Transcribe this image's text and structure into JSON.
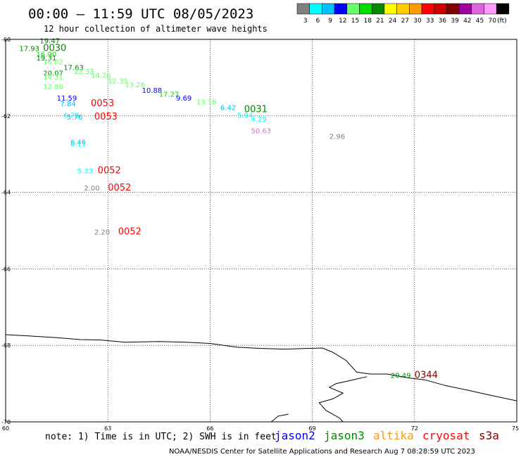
{
  "title": "00:00 – 11:59 UTC 08/05/2023",
  "subtitle": "12 hour collection of altimeter wave heights",
  "colorbar": {
    "unit": "(ft)",
    "bins": [
      {
        "label": "3",
        "color": "#7f7f7f"
      },
      {
        "label": "6",
        "color": "#00ffff"
      },
      {
        "label": "9",
        "color": "#00bfff"
      },
      {
        "label": "12",
        "color": "#0000ff"
      },
      {
        "label": "15",
        "color": "#66ff66"
      },
      {
        "label": "18",
        "color": "#00dd00"
      },
      {
        "label": "21",
        "color": "#008800"
      },
      {
        "label": "24",
        "color": "#ffff00"
      },
      {
        "label": "27",
        "color": "#ffcc00"
      },
      {
        "label": "30",
        "color": "#ff9900"
      },
      {
        "label": "33",
        "color": "#ff0000"
      },
      {
        "label": "36",
        "color": "#cc0000"
      },
      {
        "label": "39",
        "color": "#800000"
      },
      {
        "label": "42",
        "color": "#a000a0"
      },
      {
        "label": "45",
        "color": "#dd66dd"
      },
      {
        "label": "70",
        "color": "#ff99ff"
      },
      {
        "label": "",
        "color": "#000000"
      }
    ]
  },
  "axes": {
    "lat_labels": [
      "-60",
      "-62",
      "-64",
      "-66",
      "-68",
      "-70"
    ],
    "lon_labels": [
      "60",
      "63",
      "66",
      "69",
      "72",
      "75"
    ]
  },
  "observations": [
    {
      "text": "19.47",
      "color": "#008800",
      "lon": 61.0,
      "lat": -60.1
    },
    {
      "text": "17.93",
      "color": "#008800",
      "lon": 60.4,
      "lat": -60.3
    },
    {
      "text": "0030",
      "color": "#008800",
      "lon": 61.1,
      "lat": -60.3
    },
    {
      "text": "16.90",
      "color": "#00dd00",
      "lon": 60.9,
      "lat": -60.45
    },
    {
      "text": "19.31",
      "color": "#008800",
      "lon": 60.9,
      "lat": -60.55
    },
    {
      "text": "16.02",
      "color": "#66ff66",
      "lon": 61.1,
      "lat": -60.65
    },
    {
      "text": "17.63",
      "color": "#008800",
      "lon": 61.7,
      "lat": -60.8
    },
    {
      "text": "13.33",
      "color": "#66ff66",
      "lon": 62.0,
      "lat": -60.9
    },
    {
      "text": "20.07",
      "color": "#008800",
      "lon": 61.1,
      "lat": -60.95
    },
    {
      "text": "14.26",
      "color": "#66ff66",
      "lon": 62.5,
      "lat": -61.0
    },
    {
      "text": "14.31",
      "color": "#66ff66",
      "lon": 61.1,
      "lat": -61.05
    },
    {
      "text": "12.35",
      "color": "#66ff66",
      "lon": 63.0,
      "lat": -61.15
    },
    {
      "text": "13.26",
      "color": "#66ff66",
      "lon": 63.5,
      "lat": -61.25
    },
    {
      "text": "12.86",
      "color": "#66ff66",
      "lon": 61.1,
      "lat": -61.3
    },
    {
      "text": "10.88",
      "color": "#0000ff",
      "lon": 64.0,
      "lat": -61.4
    },
    {
      "text": "17.27",
      "color": "#00dd00",
      "lon": 64.5,
      "lat": -61.5
    },
    {
      "text": "9.69",
      "color": "#0000ff",
      "lon": 65.0,
      "lat": -61.6
    },
    {
      "text": "11.59",
      "color": "#0000ff",
      "lon": 61.5,
      "lat": -61.6
    },
    {
      "text": "13.16",
      "color": "#66ff66",
      "lon": 65.6,
      "lat": -61.7
    },
    {
      "text": "7.84",
      "color": "#00bfff",
      "lon": 61.6,
      "lat": -61.75
    },
    {
      "text": "0053",
      "color": "#ff0000",
      "lon": 62.5,
      "lat": -61.75
    },
    {
      "text": "6.42",
      "color": "#00bfff",
      "lon": 66.3,
      "lat": -61.85
    },
    {
      "text": "0031",
      "color": "#008800",
      "lon": 67.0,
      "lat": -61.9
    },
    {
      "text": "6.78",
      "color": "#00ffff",
      "lon": 61.7,
      "lat": -62.05
    },
    {
      "text": "5.76",
      "color": "#00bfff",
      "lon": 61.8,
      "lat": -62.1
    },
    {
      "text": "0053",
      "color": "#ff0000",
      "lon": 62.6,
      "lat": -62.1
    },
    {
      "text": "5.94",
      "color": "#00ffff",
      "lon": 66.8,
      "lat": -62.05
    },
    {
      "text": "4.29",
      "color": "#00ffff",
      "lon": 67.2,
      "lat": -62.15
    },
    {
      "text": "50.63",
      "color": "#dd66dd",
      "lon": 67.2,
      "lat": -62.45
    },
    {
      "text": "2.96",
      "color": "#7f7f7f",
      "lon": 69.5,
      "lat": -62.6
    },
    {
      "text": "6.46",
      "color": "#00bfff",
      "lon": 61.9,
      "lat": -62.75
    },
    {
      "text": "6.11",
      "color": "#00ffff",
      "lon": 61.9,
      "lat": -62.8
    },
    {
      "text": "5.33",
      "color": "#00ffff",
      "lon": 62.1,
      "lat": -63.5
    },
    {
      "text": "0052",
      "color": "#ff0000",
      "lon": 62.7,
      "lat": -63.5
    },
    {
      "text": "2.00",
      "color": "#7f7f7f",
      "lon": 62.3,
      "lat": -63.95
    },
    {
      "text": "0052",
      "color": "#ff0000",
      "lon": 63.0,
      "lat": -63.95
    },
    {
      "text": "2.20",
      "color": "#7f7f7f",
      "lon": 62.6,
      "lat": -65.1
    },
    {
      "text": "0052",
      "color": "#ff0000",
      "lon": 63.3,
      "lat": -65.1
    },
    {
      "text": "20.49",
      "color": "#008800",
      "lon": 71.3,
      "lat": -68.85
    },
    {
      "text": "0344",
      "color": "#800000",
      "lon": 72.0,
      "lat": -68.85
    }
  ],
  "coastline": [
    [
      60.0,
      -67.72
    ],
    [
      60.8,
      -67.76
    ],
    [
      61.5,
      -67.8
    ],
    [
      62.2,
      -67.85
    ],
    [
      62.8,
      -67.86
    ],
    [
      63.5,
      -67.92
    ],
    [
      64.5,
      -67.9
    ],
    [
      65.3,
      -67.92
    ],
    [
      66.0,
      -67.95
    ],
    [
      66.8,
      -68.05
    ],
    [
      67.5,
      -68.08
    ],
    [
      68.2,
      -68.1
    ],
    [
      68.8,
      -68.08
    ],
    [
      69.3,
      -68.07
    ],
    [
      69.6,
      -68.18
    ],
    [
      70.0,
      -68.4
    ],
    [
      70.3,
      -68.7
    ],
    [
      70.7,
      -68.75
    ],
    [
      71.2,
      -68.75
    ],
    [
      71.8,
      -68.85
    ],
    [
      72.3,
      -68.9
    ],
    [
      72.9,
      -69.05
    ],
    [
      73.6,
      -69.18
    ],
    [
      74.2,
      -69.3
    ],
    [
      75.0,
      -69.45
    ]
  ],
  "coastline2": [
    [
      70.6,
      -68.82
    ],
    [
      70.2,
      -68.9
    ],
    [
      69.7,
      -69.0
    ],
    [
      69.5,
      -69.1
    ],
    [
      69.9,
      -69.25
    ],
    [
      69.6,
      -69.4
    ],
    [
      69.2,
      -69.5
    ],
    [
      69.4,
      -69.7
    ],
    [
      69.8,
      -69.9
    ],
    [
      69.9,
      -70.0
    ]
  ],
  "coastline3": [
    [
      67.8,
      -70.0
    ],
    [
      68.0,
      -69.85
    ],
    [
      68.3,
      -69.8
    ]
  ],
  "legend": {
    "note": "note: 1) Time is in UTC; 2) SWH is in feet",
    "missions": [
      {
        "name": "jason2",
        "color": "#0000ff"
      },
      {
        "name": "jason3",
        "color": "#008800"
      },
      {
        "name": "altika",
        "color": "#ff9900"
      },
      {
        "name": "cryosat",
        "color": "#ff0000"
      },
      {
        "name": "s3a",
        "color": "#800000"
      }
    ]
  },
  "footer": "NOAA/NESDIS Center for Satellite Applications and Research    Aug  7 08:28:59 UTC 2023"
}
